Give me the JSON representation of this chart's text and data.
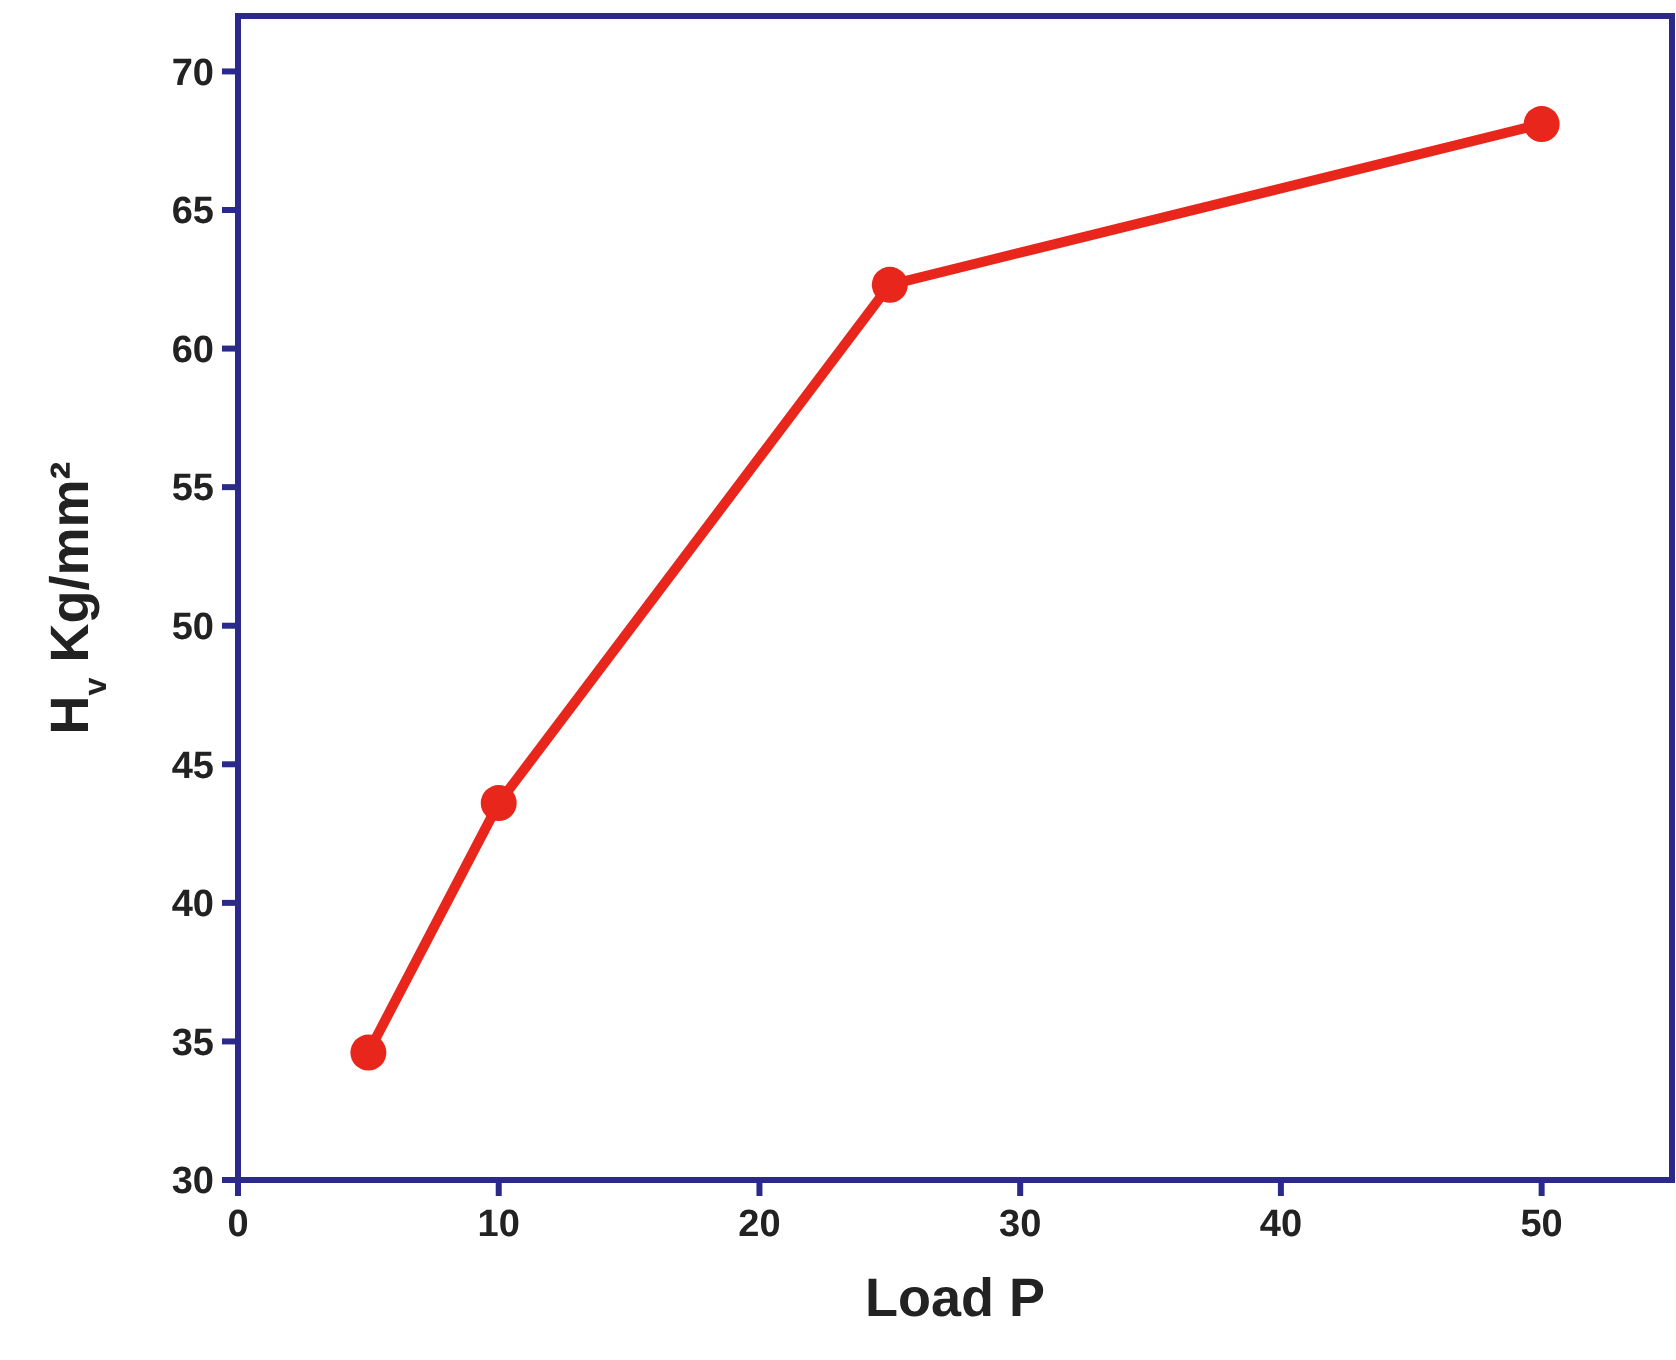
{
  "chart_data": {
    "type": "line",
    "xlabel": "Load P",
    "ylabel": "H$_{v}$ Kg/mm²",
    "x": [
      5,
      10,
      25,
      50
    ],
    "series": [
      {
        "color": "#e8261c",
        "values": [
          34.6,
          43.6,
          62.3,
          68.1
        ]
      }
    ],
    "xlim": [
      0,
      55
    ],
    "xticks": [
      0,
      10,
      20,
      30,
      40,
      50
    ],
    "ylim": [
      30,
      72
    ],
    "yticks": [
      30,
      35,
      40,
      45,
      50,
      55,
      60,
      65,
      70
    ],
    "marker": "circle",
    "line_style": "solid",
    "grid": false
  }
}
